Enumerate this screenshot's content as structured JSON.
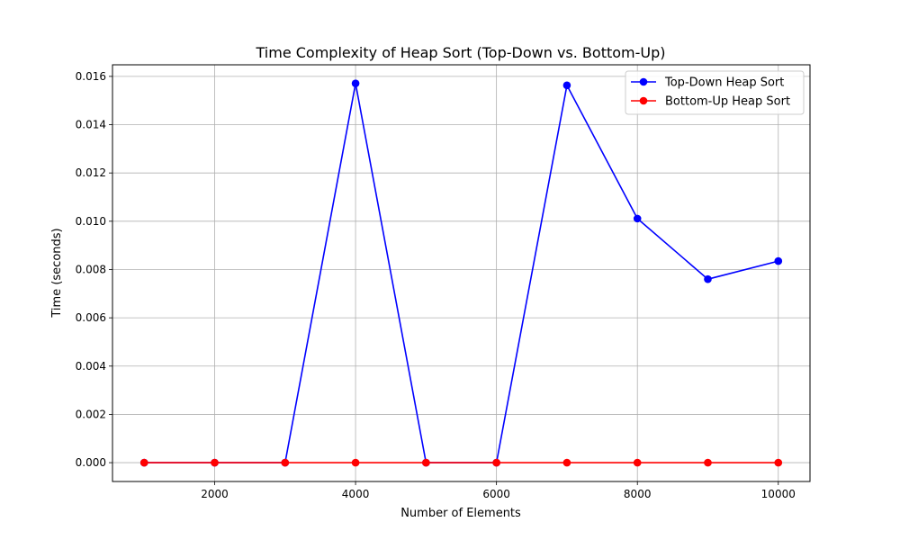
{
  "chart_data": {
    "type": "line",
    "title": "Time Complexity of Heap Sort (Top-Down vs. Bottom-Up)",
    "xlabel": "Number of Elements",
    "ylabel": "Time (seconds)",
    "x": [
      1000,
      2000,
      3000,
      4000,
      5000,
      6000,
      7000,
      8000,
      9000,
      10000
    ],
    "xlim": [
      550,
      10450
    ],
    "ylim": [
      -0.00078,
      0.01648
    ],
    "xticks": [
      2000,
      4000,
      6000,
      8000,
      10000
    ],
    "xtick_labels": [
      "2000",
      "4000",
      "6000",
      "8000",
      "10000"
    ],
    "yticks": [
      0,
      0.002,
      0.004,
      0.006,
      0.008,
      0.01,
      0.012,
      0.014,
      0.016
    ],
    "ytick_labels": [
      "0.000",
      "0.002",
      "0.004",
      "0.006",
      "0.008",
      "0.010",
      "0.012",
      "0.014",
      "0.016"
    ],
    "grid": true,
    "legend_position": "top-right",
    "series": [
      {
        "name": "Top-Down Heap Sort",
        "color": "#0000ff",
        "marker": "circle",
        "values": [
          0,
          0,
          0,
          0.01571,
          0,
          0,
          0.01563,
          0.01011,
          0.0076,
          0.00835
        ]
      },
      {
        "name": "Bottom-Up Heap Sort",
        "color": "#ff0000",
        "marker": "circle",
        "values": [
          0,
          0,
          0,
          0,
          0,
          0,
          0,
          0,
          0,
          0
        ]
      }
    ]
  }
}
